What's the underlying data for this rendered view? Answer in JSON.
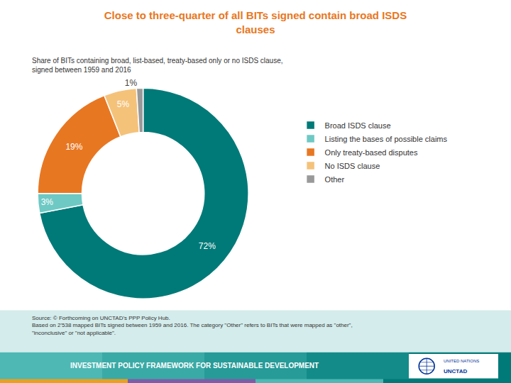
{
  "chart_data": {
    "type": "pie",
    "title": "Close to three-quarter of all BITs signed contain broad ISDS\nclauses",
    "subtitle": "Share of BITs containing broad, list-based, treaty-based only or no ISDS clause,\nsigned between 1959 and 2016",
    "categories": [
      "Broad ISDS clause",
      "Listing the bases of possible claims",
      "Only treaty-based disputes",
      "No ISDS clause",
      "Other"
    ],
    "values": [
      72,
      3,
      19,
      5,
      1
    ],
    "value_labels": [
      "72%",
      "3%",
      "19%",
      "5%",
      "1%"
    ],
    "data_labels": true,
    "colors": [
      "#007A78",
      "#6EC9C4",
      "#E87722",
      "#F5C27A",
      "#999999"
    ],
    "legend": "right",
    "annotations": [
      "Source: © Forthcoming on UNCTAD's PPP Policy Hub.\nBased on 2'538 mapped BITs signed between 1959 and 2016. The category \"Other\" refers to BITs that were mapped as \"other\",\n\"inconclusive\" or \"not applicable\".",
      "INVESTMENT POLICY FRAMEWORK FOR SUSTAINABLE DEVELOPMENT",
      "UNITED NATIONS",
      "UNCTAD"
    ]
  }
}
